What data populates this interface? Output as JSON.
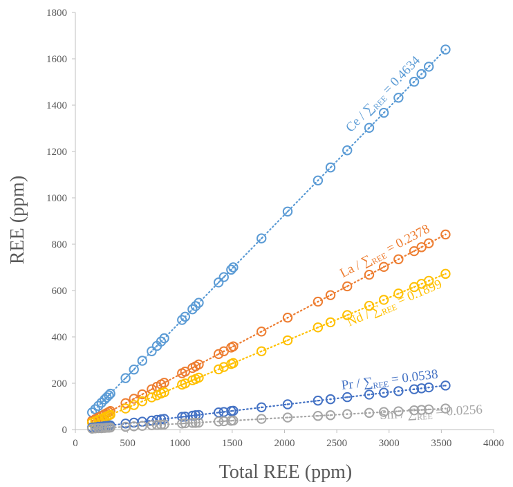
{
  "chart_data": {
    "type": "scatter",
    "xlabel": "Total REE (ppm)",
    "ylabel": "REE (ppm)",
    "xlim": [
      0,
      4000
    ],
    "ylim": [
      0,
      1800
    ],
    "xticks": [
      0,
      500,
      1000,
      1500,
      2000,
      2500,
      3000,
      3500,
      4000
    ],
    "yticks": [
      0,
      200,
      400,
      600,
      800,
      1000,
      1200,
      1400,
      1600,
      1800
    ],
    "x": [
      160,
      190,
      220,
      250,
      280,
      300,
      320,
      335,
      480,
      560,
      640,
      730,
      780,
      820,
      850,
      1020,
      1050,
      1120,
      1150,
      1180,
      1370,
      1420,
      1490,
      1510,
      1780,
      2030,
      2320,
      2440,
      2600,
      2810,
      2950,
      3090,
      3240,
      3310,
      3380,
      3540
    ],
    "series": [
      {
        "color": "#5B9BD5",
        "values": [
          74,
          88,
          102,
          116,
          130,
          139,
          148,
          155,
          222,
          259,
          297,
          338,
          361,
          380,
          394,
          473,
          487,
          519,
          533,
          547,
          635,
          658,
          690,
          700,
          825,
          941,
          1075,
          1131,
          1205,
          1302,
          1367,
          1432,
          1501,
          1534,
          1566,
          1640
        ]
      },
      {
        "color": "#ED7D31",
        "values": [
          38,
          45,
          52,
          59,
          67,
          71,
          76,
          80,
          114,
          133,
          152,
          174,
          185,
          195,
          202,
          243,
          250,
          266,
          273,
          281,
          326,
          338,
          354,
          359,
          423,
          483,
          552,
          580,
          618,
          668,
          702,
          735,
          770,
          787,
          804,
          842
        ]
      },
      {
        "color": "#FFC000",
        "values": [
          30,
          36,
          42,
          47,
          53,
          57,
          61,
          64,
          91,
          106,
          122,
          139,
          148,
          156,
          161,
          194,
          199,
          213,
          218,
          224,
          260,
          270,
          283,
          287,
          338,
          385,
          441,
          463,
          494,
          534,
          560,
          587,
          615,
          629,
          642,
          672
        ]
      },
      {
        "color": "#4472C4",
        "values": [
          9,
          10,
          12,
          13,
          15,
          16,
          17,
          18,
          26,
          30,
          34,
          39,
          42,
          44,
          46,
          55,
          56,
          60,
          62,
          63,
          74,
          76,
          80,
          81,
          96,
          109,
          125,
          131,
          140,
          151,
          159,
          166,
          174,
          178,
          182,
          190
        ]
      },
      {
        "color": "#A5A5A5",
        "values": [
          4,
          5,
          6,
          6,
          7,
          8,
          8,
          9,
          12,
          14,
          16,
          19,
          20,
          21,
          22,
          26,
          27,
          29,
          29,
          30,
          35,
          36,
          38,
          39,
          46,
          52,
          59,
          62,
          67,
          72,
          76,
          79,
          83,
          85,
          87,
          91
        ]
      }
    ],
    "annotations": [
      {
        "pre": "Ce / ∑",
        "sub": "REE",
        "post": " = 0.4634",
        "color": "#5B9BD5"
      },
      {
        "pre": "La / ∑",
        "sub": "REE",
        "post": " = 0.2378",
        "color": "#ED7D31"
      },
      {
        "pre": "Nd / ∑",
        "sub": "REE",
        "post": " = 0.1899",
        "color": "#FFC000"
      },
      {
        "pre": "Pr / ∑",
        "sub": "REE",
        "post": " = 0.0538",
        "color": "#4472C4"
      },
      {
        "pre": "Sm / ∑",
        "sub": "REE",
        "post": " = 0.0256",
        "color": "#A5A5A5"
      }
    ]
  }
}
